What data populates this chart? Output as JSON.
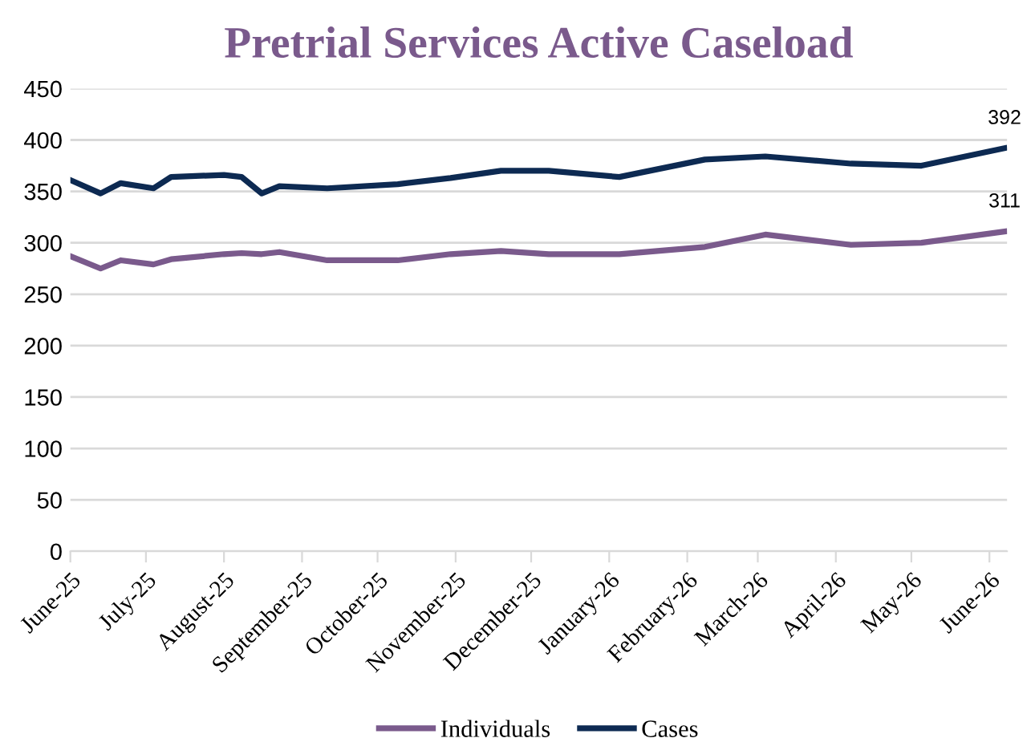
{
  "chart_data": {
    "type": "line",
    "title": "Pretrial Services Active Caseload",
    "x": [
      "2025-06-01",
      "2025-06-13",
      "2025-06-21",
      "2025-07-04",
      "2025-07-11",
      "2025-08-01",
      "2025-08-08",
      "2025-08-16",
      "2025-08-23",
      "2025-09-11",
      "2025-10-09",
      "2025-10-30",
      "2025-11-19",
      "2025-12-08",
      "2026-01-05",
      "2026-02-08",
      "2026-03-04",
      "2026-04-07",
      "2026-05-05",
      "2026-06-07"
    ],
    "series": [
      {
        "name": "Individuals",
        "color": "#7a5a8c",
        "values": [
          287,
          275,
          283,
          279,
          284,
          289,
          290,
          289,
          291,
          283,
          283,
          289,
          292,
          289,
          289,
          296,
          308,
          298,
          300,
          311
        ],
        "value_labels": [
          null,
          null,
          null,
          null,
          null,
          null,
          null,
          null,
          null,
          null,
          null,
          null,
          null,
          null,
          null,
          null,
          null,
          null,
          null,
          "311"
        ]
      },
      {
        "name": "Cases",
        "color": "#0d2a52",
        "values": [
          361,
          348,
          358,
          353,
          364,
          366,
          364,
          348,
          355,
          353,
          357,
          363,
          370,
          370,
          364,
          381,
          384,
          377,
          375,
          392
        ],
        "value_labels": [
          null,
          null,
          null,
          null,
          null,
          null,
          null,
          null,
          null,
          null,
          null,
          null,
          null,
          null,
          null,
          null,
          null,
          null,
          null,
          "392"
        ]
      }
    ],
    "xlim": [
      "2025-06-01",
      "2026-06-08"
    ],
    "xticks": [
      {
        "value": "2025-06-01",
        "label": "June-25"
      },
      {
        "value": "2025-07-01",
        "label": "July-25"
      },
      {
        "value": "2025-08-01",
        "label": "August-25"
      },
      {
        "value": "2025-09-01",
        "label": "September-25"
      },
      {
        "value": "2025-10-01",
        "label": "October-25"
      },
      {
        "value": "2025-11-01",
        "label": "November-25"
      },
      {
        "value": "2025-12-01",
        "label": "December-25"
      },
      {
        "value": "2026-01-01",
        "label": "January-26"
      },
      {
        "value": "2026-02-01",
        "label": "February-26"
      },
      {
        "value": "2026-03-01",
        "label": "March-26"
      },
      {
        "value": "2026-04-01",
        "label": "April-26"
      },
      {
        "value": "2026-05-01",
        "label": "May-26"
      },
      {
        "value": "2026-06-01",
        "label": "June-26"
      }
    ],
    "ylim": [
      0,
      450
    ],
    "yticks": [
      0,
      50,
      100,
      150,
      200,
      250,
      300,
      350,
      400,
      450
    ],
    "grid": "y",
    "legend": "bottom",
    "marker": "none",
    "line_style": "solid"
  }
}
